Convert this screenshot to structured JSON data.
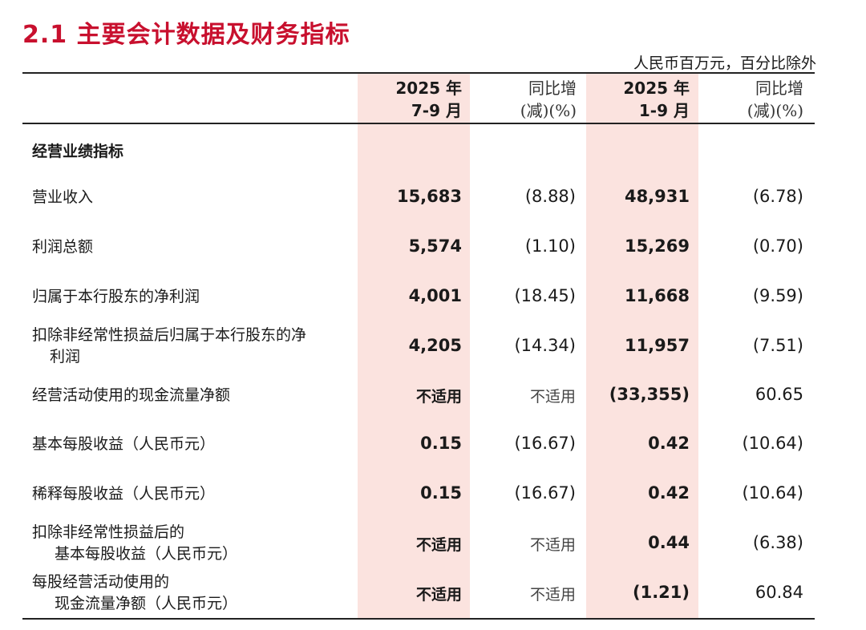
{
  "title": "2.1 主要会计数据及财务指标",
  "unit_note": "人民币百万元，百分比除外",
  "headers": {
    "col1_line1": "2025 年",
    "col1_line2": "7-9 月",
    "col2_line1": "同比增",
    "col2_line2": "(减)(%)",
    "col3_line1": "2025 年",
    "col3_line2": "1-9 月",
    "col4_line1": "同比增",
    "col4_line2": "(减)(%)"
  },
  "colors": {
    "title": "#c8102e",
    "shade": "#fbe3df"
  },
  "section_label": "经营业绩指标",
  "rows": [
    {
      "label1": "营业收入",
      "label2": "",
      "q3": "15,683",
      "q3_yoy": "(8.88)",
      "ytd": "48,931",
      "ytd_yoy": "(6.78)"
    },
    {
      "label1": "利润总额",
      "label2": "",
      "q3": "5,574",
      "q3_yoy": "(1.10)",
      "ytd": "15,269",
      "ytd_yoy": "(0.70)"
    },
    {
      "label1": "归属于本行股东的净利润",
      "label2": "",
      "q3": "4,001",
      "q3_yoy": "(18.45)",
      "ytd": "11,668",
      "ytd_yoy": "(9.59)"
    },
    {
      "label1": "扣除非经常性损益后归属于本行股东的净",
      "label2": "利润",
      "q3": "4,205",
      "q3_yoy": "(14.34)",
      "ytd": "11,957",
      "ytd_yoy": "(7.51)"
    },
    {
      "label1": "经营活动使用的现金流量净额",
      "label2": "",
      "q3": "不适用",
      "q3_yoy": "不适用",
      "ytd": "(33,355)",
      "ytd_yoy": "60.65"
    },
    {
      "label1": "基本每股收益（人民币元）",
      "label2": "",
      "q3": "0.15",
      "q3_yoy": "(16.67)",
      "ytd": "0.42",
      "ytd_yoy": "(10.64)"
    },
    {
      "label1": "稀释每股收益（人民币元）",
      "label2": "",
      "q3": "0.15",
      "q3_yoy": "(16.67)",
      "ytd": "0.42",
      "ytd_yoy": "(10.64)"
    },
    {
      "label1": "扣除非经常性损益后的",
      "label2": "基本每股收益（人民币元）",
      "q3": "不适用",
      "q3_yoy": "不适用",
      "ytd": "0.44",
      "ytd_yoy": "(6.38)"
    },
    {
      "label1": "每股经营活动使用的",
      "label2": "现金流量净额（人民币元）",
      "q3": "不适用",
      "q3_yoy": "不适用",
      "ytd": "(1.21)",
      "ytd_yoy": "60.84"
    }
  ]
}
